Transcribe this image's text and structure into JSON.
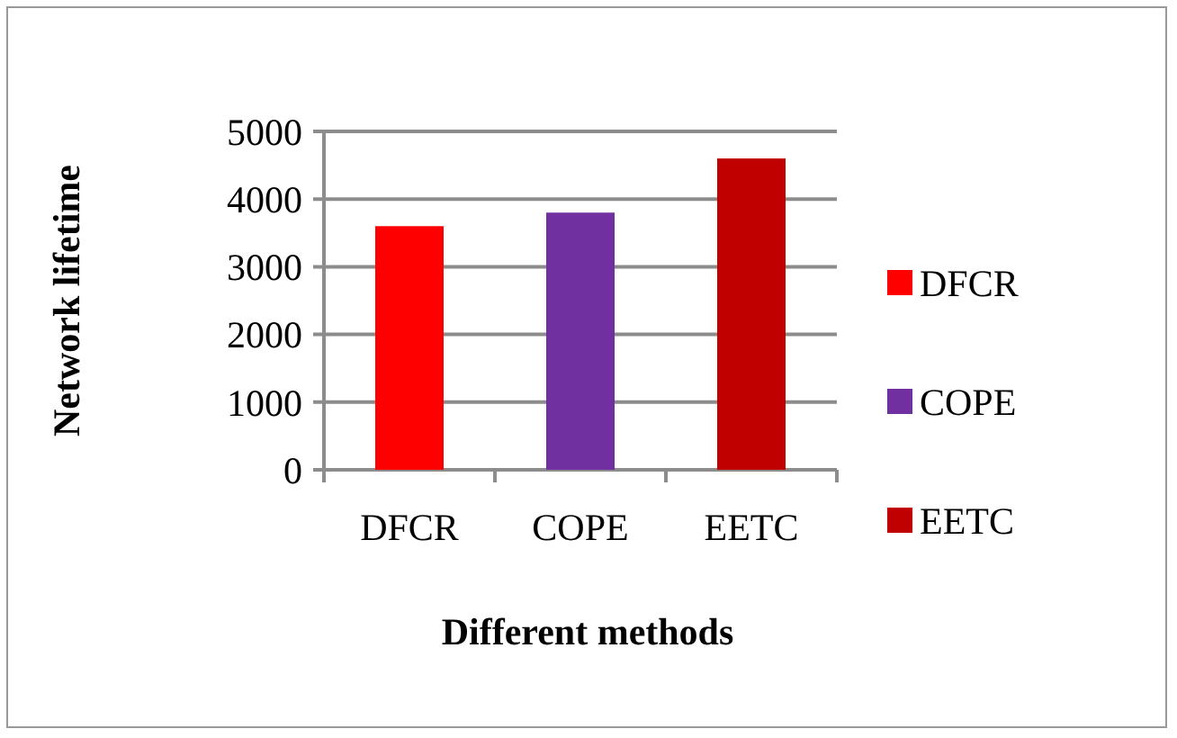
{
  "chart_data": {
    "type": "bar",
    "xlabel": "Different methods",
    "ylabel": "Network lifetime",
    "categories": [
      "DFCR",
      "COPE",
      "EETC"
    ],
    "series": [
      {
        "name": "DFCR",
        "color": "#ff0000",
        "values": [
          3600,
          null,
          null
        ]
      },
      {
        "name": "COPE",
        "color": "#7030a0",
        "values": [
          null,
          3800,
          null
        ]
      },
      {
        "name": "EETC",
        "color": "#c00000",
        "values": [
          null,
          null,
          4600
        ]
      }
    ],
    "ylim": [
      0,
      5000
    ],
    "yticks": [
      0,
      1000,
      2000,
      3000,
      4000,
      5000
    ],
    "grid": "y",
    "legend": "right"
  }
}
